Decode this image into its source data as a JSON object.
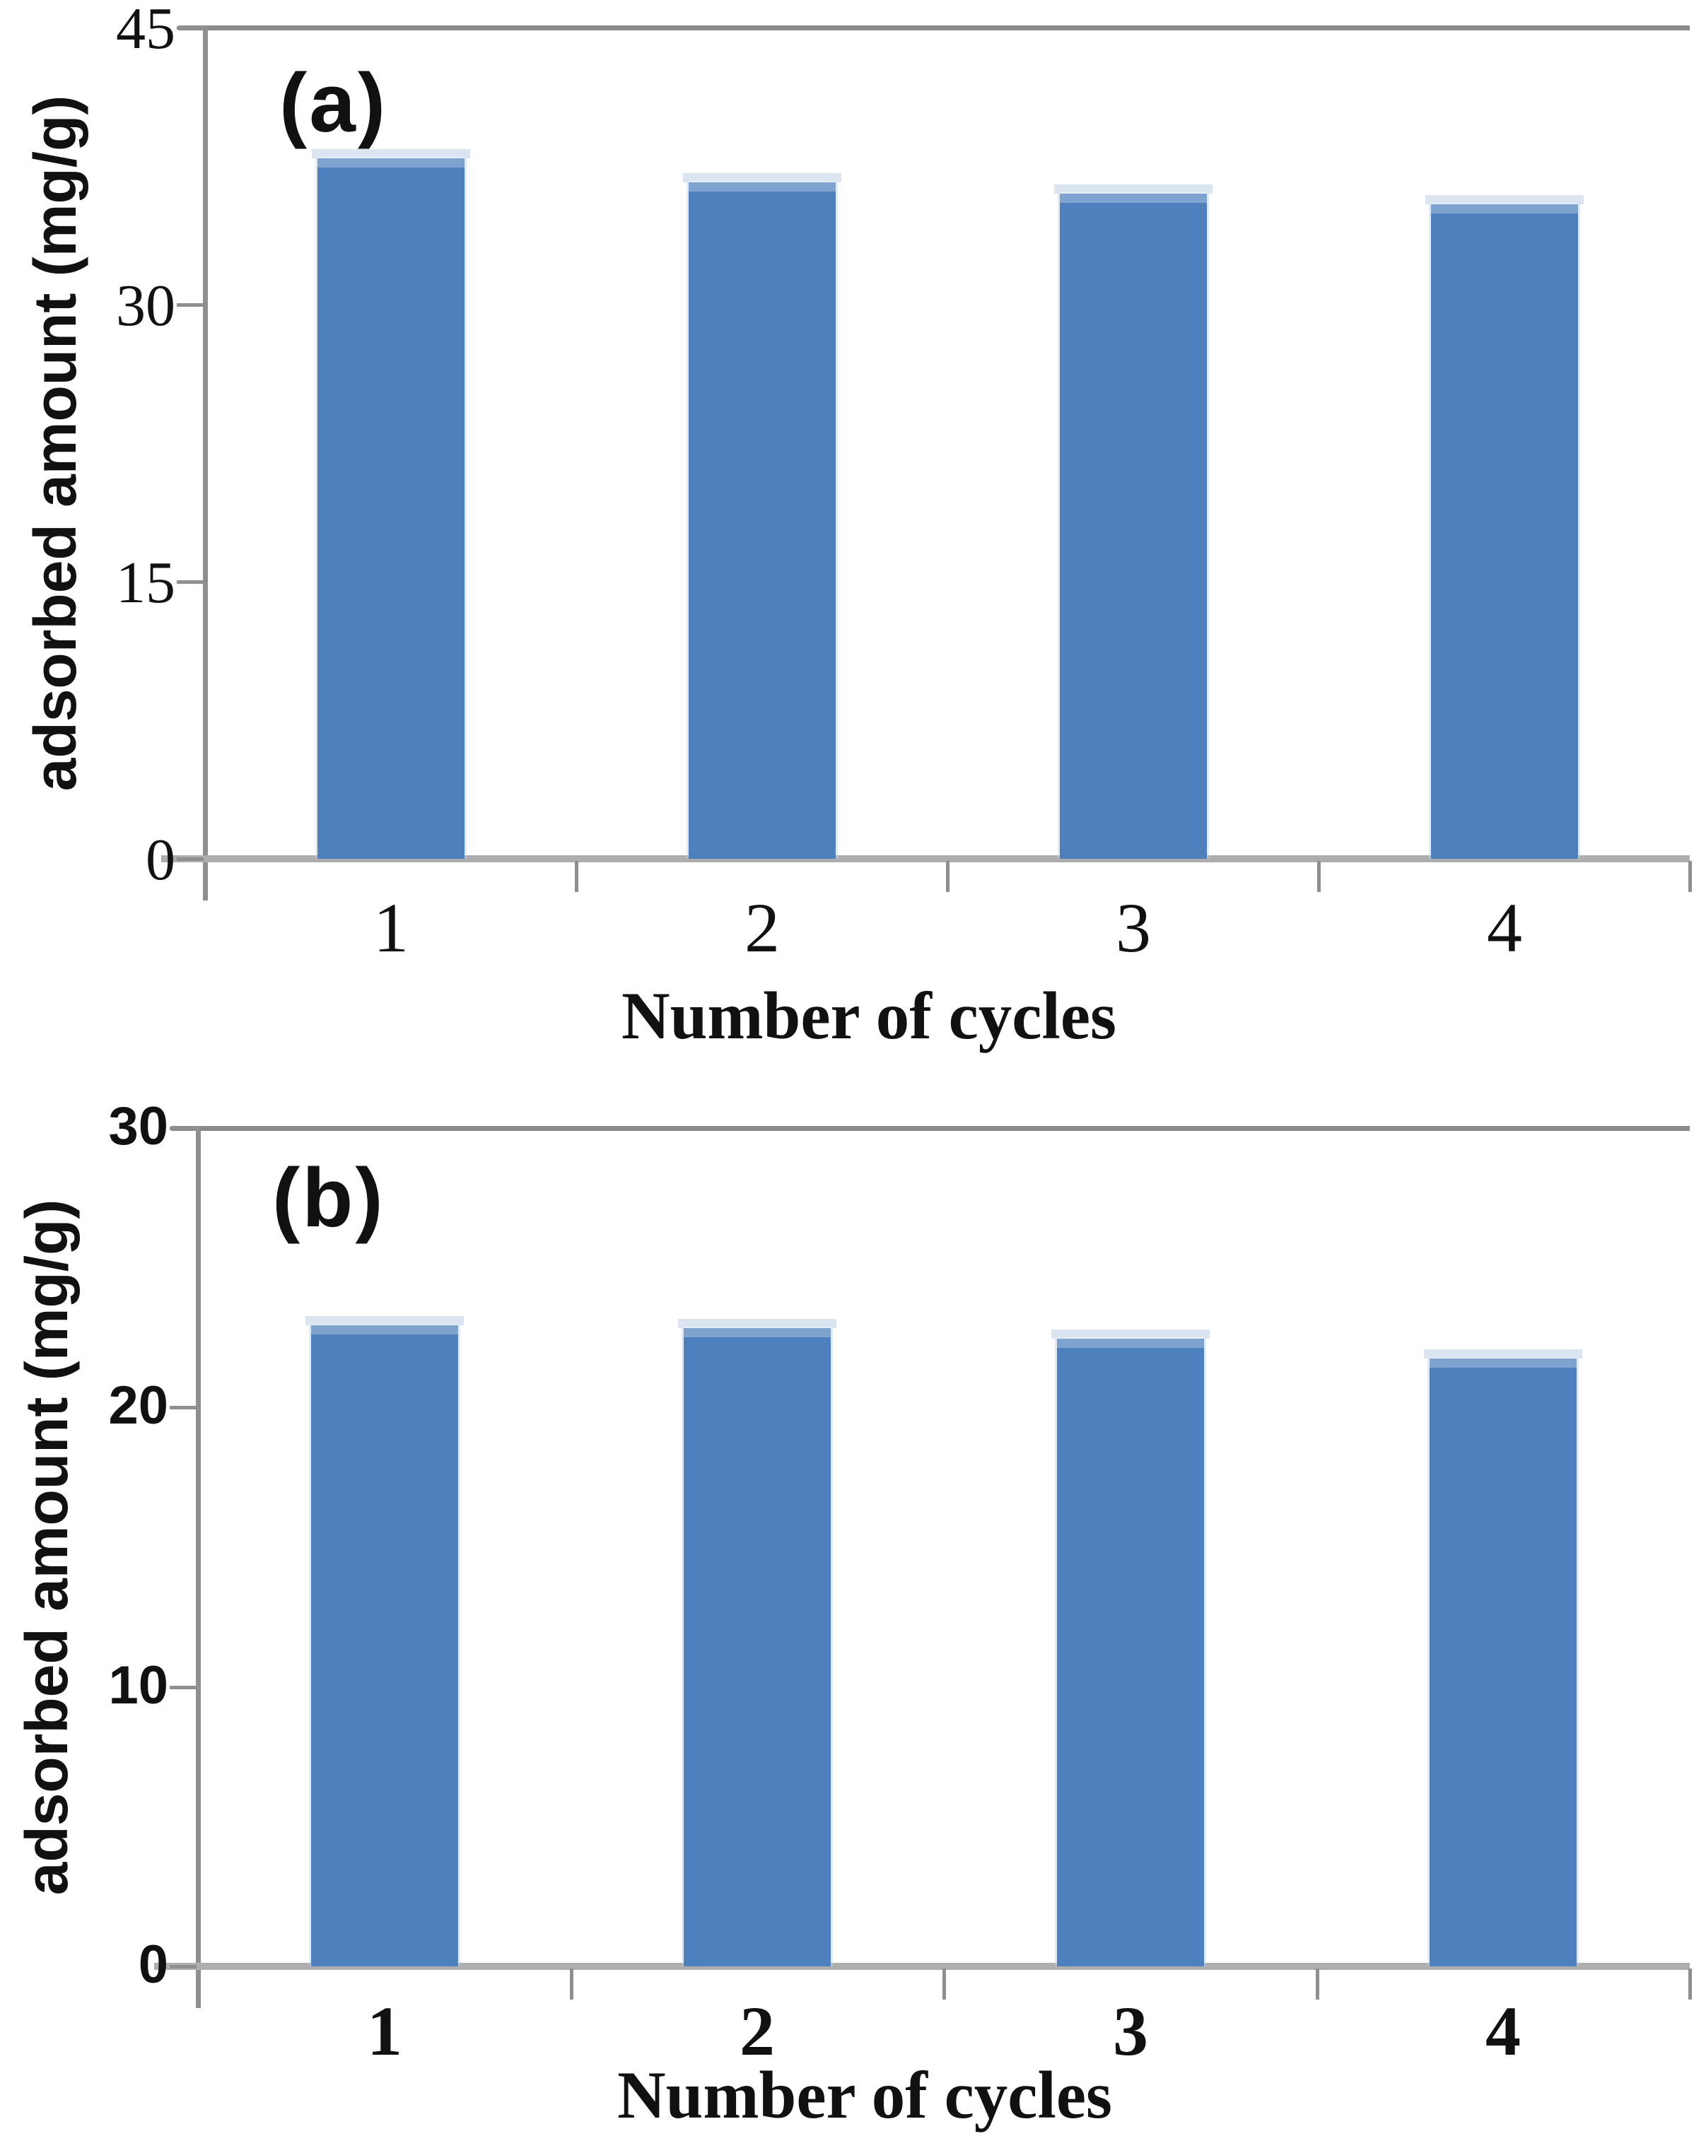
{
  "figure": {
    "description_visible_text_only": "Two stacked bar chart panels labeled (a) and (b)",
    "colors": {
      "bar": "#4d80bd",
      "bar_top_band": "#7ea6d6",
      "bar_pale_cap": "#dbe5f1",
      "axis_line": "#8f8f8f",
      "baseline": "#aeaeae",
      "text": "#111111",
      "background": "#ffffff"
    }
  },
  "chart_data": [
    {
      "type": "bar",
      "panel": "(a)",
      "categories": [
        "1",
        "2",
        "3",
        "4"
      ],
      "values": [
        38.0,
        36.7,
        36.1,
        35.5
      ],
      "xlabel": "Number of cycles",
      "ylabel": "adsorbed amount (mg/g)",
      "ylim": [
        0,
        45
      ],
      "yticks": [
        45,
        30,
        15,
        0
      ],
      "bar_color": "#4d80bd",
      "grid": false,
      "legend": false
    },
    {
      "type": "bar",
      "panel": "(b)",
      "categories": [
        "1",
        "2",
        "3",
        "4"
      ],
      "values": [
        23.0,
        22.9,
        22.5,
        21.8
      ],
      "xlabel": "Number of cycles",
      "ylabel": "adsorbed amount (mg/g)",
      "ylim": [
        0,
        30
      ],
      "yticks": [
        30,
        20,
        10,
        0
      ],
      "bar_color": "#4d80bd",
      "grid": false,
      "legend": false
    }
  ]
}
